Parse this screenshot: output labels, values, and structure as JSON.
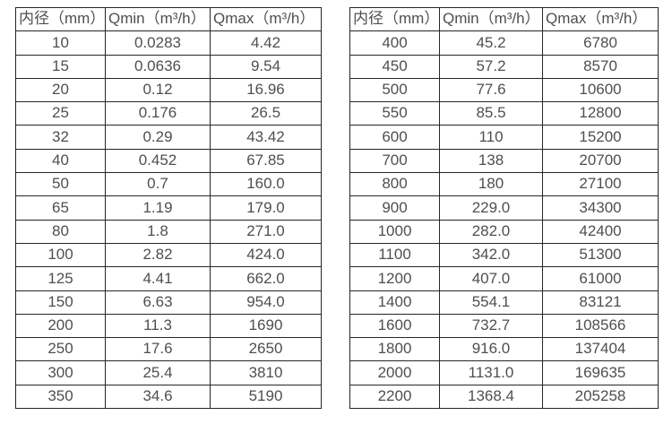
{
  "colors": {
    "border": "#262626",
    "text": "#4f4f4f",
    "background": "#ffffff"
  },
  "tables": [
    {
      "name": "small-diameter-flow-table",
      "headers": [
        "内径（mm）",
        "Qmin（m³/h）",
        "Qmax（m³/h）"
      ],
      "rows": [
        [
          "10",
          "0.0283",
          "4.42"
        ],
        [
          "15",
          "0.0636",
          "9.54"
        ],
        [
          "20",
          "0.12",
          "16.96"
        ],
        [
          "25",
          "0.176",
          "26.5"
        ],
        [
          "32",
          "0.29",
          "43.42"
        ],
        [
          "40",
          "0.452",
          "67.85"
        ],
        [
          "50",
          "0.7",
          "160.0"
        ],
        [
          "65",
          "1.19",
          "179.0"
        ],
        [
          "80",
          "1.8",
          "271.0"
        ],
        [
          "100",
          "2.82",
          "424.0"
        ],
        [
          "125",
          "4.41",
          "662.0"
        ],
        [
          "150",
          "6.63",
          "954.0"
        ],
        [
          "200",
          "11.3",
          "1690"
        ],
        [
          "250",
          "17.6",
          "2650"
        ],
        [
          "300",
          "25.4",
          "3810"
        ],
        [
          "350",
          "34.6",
          "5190"
        ]
      ]
    },
    {
      "name": "large-diameter-flow-table",
      "headers": [
        "内径（mm）",
        "Qmin（m³/h）",
        "Qmax（m³/h）"
      ],
      "rows": [
        [
          "400",
          "45.2",
          "6780"
        ],
        [
          "450",
          "57.2",
          "8570"
        ],
        [
          "500",
          "77.6",
          "10600"
        ],
        [
          "550",
          "85.5",
          "12800"
        ],
        [
          "600",
          "110",
          "15200"
        ],
        [
          "700",
          "138",
          "20700"
        ],
        [
          "800",
          "180",
          "27100"
        ],
        [
          "900",
          "229.0",
          "34300"
        ],
        [
          "1000",
          "282.0",
          "42400"
        ],
        [
          "1100",
          "342.0",
          "51300"
        ],
        [
          "1200",
          "407.0",
          "61000"
        ],
        [
          "1400",
          "554.1",
          "83121"
        ],
        [
          "1600",
          "732.7",
          "108566"
        ],
        [
          "1800",
          "916.0",
          "137404"
        ],
        [
          "2000",
          "1131.0",
          "169635"
        ],
        [
          "2200",
          "1368.4",
          "205258"
        ]
      ]
    }
  ]
}
